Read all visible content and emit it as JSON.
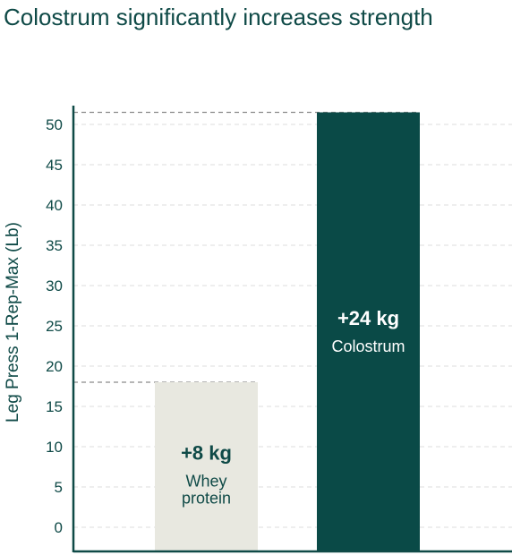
{
  "chart_data": {
    "type": "bar",
    "title": "Colostrum significantly increases strength",
    "ylabel": "Leg Press 1-Rep-Max (Lb)",
    "xlabel": "",
    "ylim": [
      0,
      55
    ],
    "yticks": [
      0,
      5,
      10,
      15,
      20,
      25,
      30,
      35,
      40,
      45,
      50
    ],
    "grid": true,
    "bars": [
      {
        "value_label": "+8 kg",
        "category": "Whey protein",
        "category_lines": [
          "Whey",
          "protein"
        ],
        "value": 18,
        "color": "#e8e8e0",
        "text_color": "#0f4a47"
      },
      {
        "value_label": "+24 kg",
        "category": "Colostrum",
        "category_lines": [
          "Colostrum"
        ],
        "value": 51.5,
        "color": "#0a4a47",
        "text_color": "#ffffff"
      }
    ],
    "colors": {
      "axis": "#0f4a47",
      "grid": "#dcdcdc",
      "reference_line": "#8a8a8a",
      "text": "#0f4a47"
    }
  }
}
